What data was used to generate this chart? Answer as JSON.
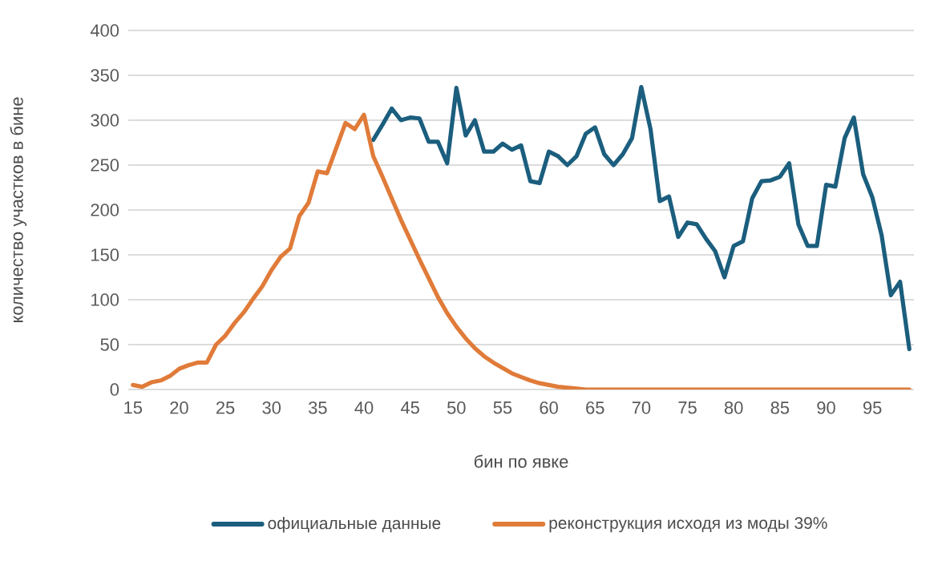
{
  "chart_data": {
    "type": "line",
    "xlabel": "бин по явке",
    "ylabel": "количество участков в бине",
    "x": [
      15,
      16,
      17,
      18,
      19,
      20,
      21,
      22,
      23,
      24,
      25,
      26,
      27,
      28,
      29,
      30,
      31,
      32,
      33,
      34,
      35,
      36,
      37,
      38,
      39,
      40,
      41,
      42,
      43,
      44,
      45,
      46,
      47,
      48,
      49,
      50,
      51,
      52,
      53,
      54,
      55,
      56,
      57,
      58,
      59,
      60,
      61,
      62,
      63,
      64,
      65,
      66,
      67,
      68,
      69,
      70,
      71,
      72,
      73,
      74,
      75,
      76,
      77,
      78,
      79,
      80,
      81,
      82,
      83,
      84,
      85,
      86,
      87,
      88,
      89,
      90,
      91,
      92,
      93,
      94,
      95,
      96,
      97,
      98,
      99
    ],
    "series": [
      {
        "name": "официальные данные",
        "color": "#1b5e7e",
        "values": [
          null,
          null,
          null,
          null,
          null,
          null,
          null,
          null,
          null,
          null,
          null,
          null,
          null,
          null,
          null,
          null,
          null,
          null,
          null,
          null,
          null,
          null,
          null,
          null,
          null,
          null,
          278,
          295,
          313,
          300,
          303,
          302,
          276,
          276,
          252,
          336,
          283,
          300,
          265,
          265,
          274,
          267,
          272,
          232,
          230,
          265,
          260,
          250,
          260,
          285,
          292,
          262,
          250,
          262,
          280,
          337,
          290,
          210,
          215,
          170,
          186,
          184,
          168,
          154,
          125,
          160,
          165,
          213,
          232,
          233,
          237,
          252,
          184,
          160,
          160,
          228,
          226,
          280,
          303,
          240,
          214,
          172,
          105,
          120,
          45
        ]
      },
      {
        "name": "реконструкция исходя из моды 39%",
        "color": "#e07b39",
        "values": [
          5,
          3,
          8,
          10,
          15,
          23,
          27,
          30,
          30,
          50,
          60,
          74,
          86,
          101,
          115,
          133,
          148,
          157,
          193,
          208,
          243,
          241,
          269,
          297,
          290,
          306,
          260,
          237,
          213,
          189,
          167,
          145,
          124,
          103,
          85,
          70,
          57,
          46,
          37,
          30,
          24,
          18,
          14,
          10,
          7,
          5,
          3,
          2,
          1,
          0,
          0,
          0,
          0,
          0,
          0,
          0,
          0,
          0,
          0,
          0,
          0,
          0,
          0,
          0,
          0,
          0,
          0,
          0,
          0,
          0,
          0,
          0,
          0,
          0,
          0,
          0,
          0,
          0,
          0,
          0,
          0,
          0,
          0,
          0,
          0
        ]
      }
    ],
    "xlim": [
      14.5,
      99.5
    ],
    "ylim": [
      0,
      400
    ],
    "xticks": [
      15,
      20,
      25,
      30,
      35,
      40,
      45,
      50,
      55,
      60,
      65,
      70,
      75,
      80,
      85,
      90,
      95
    ],
    "yticks": [
      0,
      50,
      100,
      150,
      200,
      250,
      300,
      350,
      400
    ],
    "grid": "y",
    "legend": "bottom",
    "marker": "none",
    "line_style": "solid"
  }
}
